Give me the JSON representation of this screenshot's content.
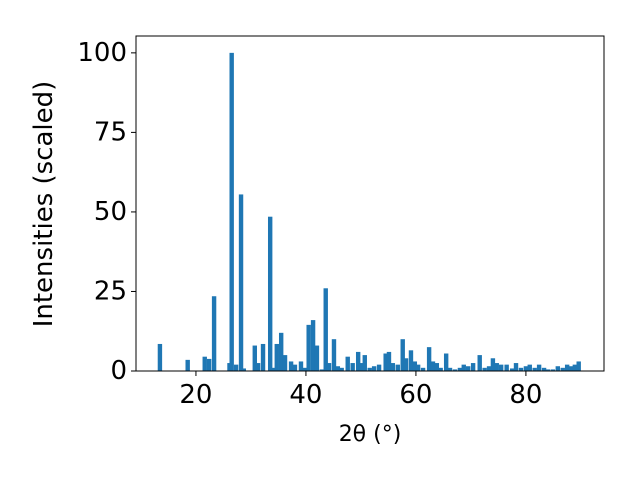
{
  "chart_data": {
    "type": "bar",
    "xlabel": "2θ (°)",
    "ylabel": "Intensities (scaled)",
    "color": "#1f77b4",
    "x": [
      13.45,
      18.5,
      21.6,
      22.4,
      23.3,
      26.1,
      26.5,
      27.3,
      28.2,
      28.7,
      30.7,
      31.3,
      32.2,
      33.5,
      34.0,
      34.7,
      35.5,
      36.2,
      37.3,
      38.0,
      39.1,
      39.8,
      40.5,
      41.3,
      42.0,
      42.9,
      43.6,
      44.2,
      45.1,
      45.8,
      46.5,
      47.6,
      48.5,
      49.5,
      50.0,
      50.7,
      51.6,
      52.4,
      53.3,
      54.5,
      55.1,
      55.8,
      56.7,
      57.6,
      58.2,
      59.1,
      59.8,
      60.4,
      61.3,
      62.4,
      63.1,
      63.8,
      64.5,
      65.5,
      66.2,
      67.1,
      68.0,
      68.7,
      69.5,
      70.4,
      71.6,
      72.5,
      73.3,
      74.0,
      74.7,
      75.5,
      76.5,
      77.5,
      78.2,
      79.1,
      80.0,
      80.7,
      81.6,
      82.4,
      83.3,
      84.0,
      84.9,
      85.8,
      86.7,
      87.5,
      88.2,
      88.9,
      89.6
    ],
    "values": [
      8.5,
      3.5,
      4.5,
      3.8,
      23.5,
      2.5,
      100,
      2,
      55.5,
      0.8,
      8,
      2.5,
      8.5,
      48.5,
      1,
      8.5,
      12,
      5,
      3,
      2,
      3,
      1,
      14.5,
      16,
      8,
      0.5,
      26,
      2.5,
      10,
      1.5,
      1,
      4.5,
      2.5,
      6,
      2.5,
      5,
      1,
      1.5,
      2,
      5.5,
      6,
      2.5,
      2,
      10,
      4,
      6.5,
      3,
      2,
      1,
      7.5,
      3,
      2.5,
      1,
      5.5,
      1,
      0.5,
      1,
      2,
      1.5,
      2.5,
      5,
      1,
      1.5,
      4,
      2.5,
      2,
      2,
      0.8,
      2.5,
      1,
      1.5,
      2,
      1,
      2,
      1,
      0.5,
      0.5,
      1.5,
      1,
      2,
      1.5,
      2,
      3
    ],
    "xlim": [
      9.1,
      94.2
    ],
    "ylim": [
      0,
      105.3
    ],
    "xticks": [
      20,
      40,
      60,
      80
    ],
    "yticks": [
      0,
      25,
      50,
      75,
      100
    ]
  }
}
